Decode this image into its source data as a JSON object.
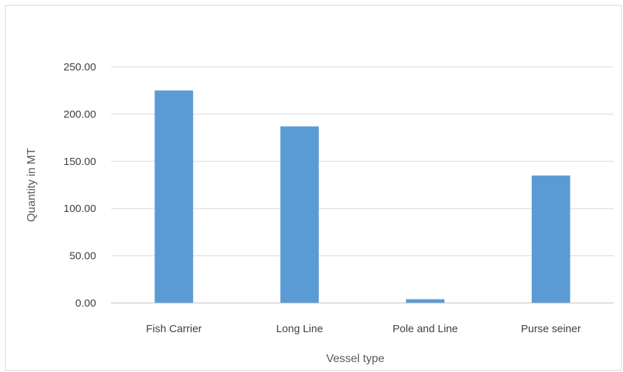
{
  "chart_data": {
    "type": "bar",
    "title": "",
    "xlabel": "Vessel type",
    "ylabel": "Quantity in MT",
    "categories": [
      "Fish Carrier",
      "Long Line",
      "Pole and Line",
      "Purse seiner"
    ],
    "values": [
      225.0,
      187.0,
      4.0,
      135.0
    ],
    "ylim": [
      0,
      250
    ],
    "yticks": [
      "0.00",
      "50.00",
      "100.00",
      "150.00",
      "200.00",
      "250.00"
    ],
    "grid": true,
    "legend": "none",
    "colors": {
      "bar": "#5b9bd5",
      "grid": "#d9d9d9",
      "axis": "#bfbfbf",
      "text": "#404040"
    }
  }
}
